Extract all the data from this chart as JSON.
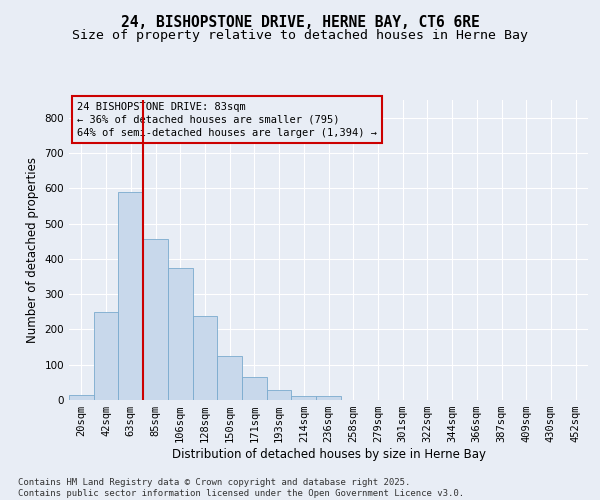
{
  "title_line1": "24, BISHOPSTONE DRIVE, HERNE BAY, CT6 6RE",
  "title_line2": "Size of property relative to detached houses in Herne Bay",
  "xlabel": "Distribution of detached houses by size in Herne Bay",
  "ylabel": "Number of detached properties",
  "categories": [
    "20sqm",
    "42sqm",
    "63sqm",
    "85sqm",
    "106sqm",
    "128sqm",
    "150sqm",
    "171sqm",
    "193sqm",
    "214sqm",
    "236sqm",
    "258sqm",
    "279sqm",
    "301sqm",
    "322sqm",
    "344sqm",
    "366sqm",
    "387sqm",
    "409sqm",
    "430sqm",
    "452sqm"
  ],
  "values": [
    15,
    248,
    590,
    455,
    375,
    238,
    125,
    65,
    28,
    10,
    10,
    0,
    0,
    0,
    0,
    0,
    0,
    0,
    0,
    0,
    0
  ],
  "bar_color": "#c8d8eb",
  "bar_edge_color": "#7aaace",
  "vline_color": "#cc0000",
  "vline_x_index": 2.5,
  "annotation_box_text": "24 BISHOPSTONE DRIVE: 83sqm\n← 36% of detached houses are smaller (795)\n64% of semi-detached houses are larger (1,394) →",
  "annotation_box_color": "#cc0000",
  "bg_color": "#e8edf5",
  "plot_bg_color": "#e8edf5",
  "footer_text": "Contains HM Land Registry data © Crown copyright and database right 2025.\nContains public sector information licensed under the Open Government Licence v3.0.",
  "ylim": [
    0,
    850
  ],
  "yticks": [
    0,
    100,
    200,
    300,
    400,
    500,
    600,
    700,
    800
  ],
  "grid_color": "#ffffff",
  "title_fontsize": 10.5,
  "subtitle_fontsize": 9.5,
  "axis_label_fontsize": 8.5,
  "tick_fontsize": 7.5,
  "annotation_fontsize": 7.5,
  "footer_fontsize": 6.5
}
